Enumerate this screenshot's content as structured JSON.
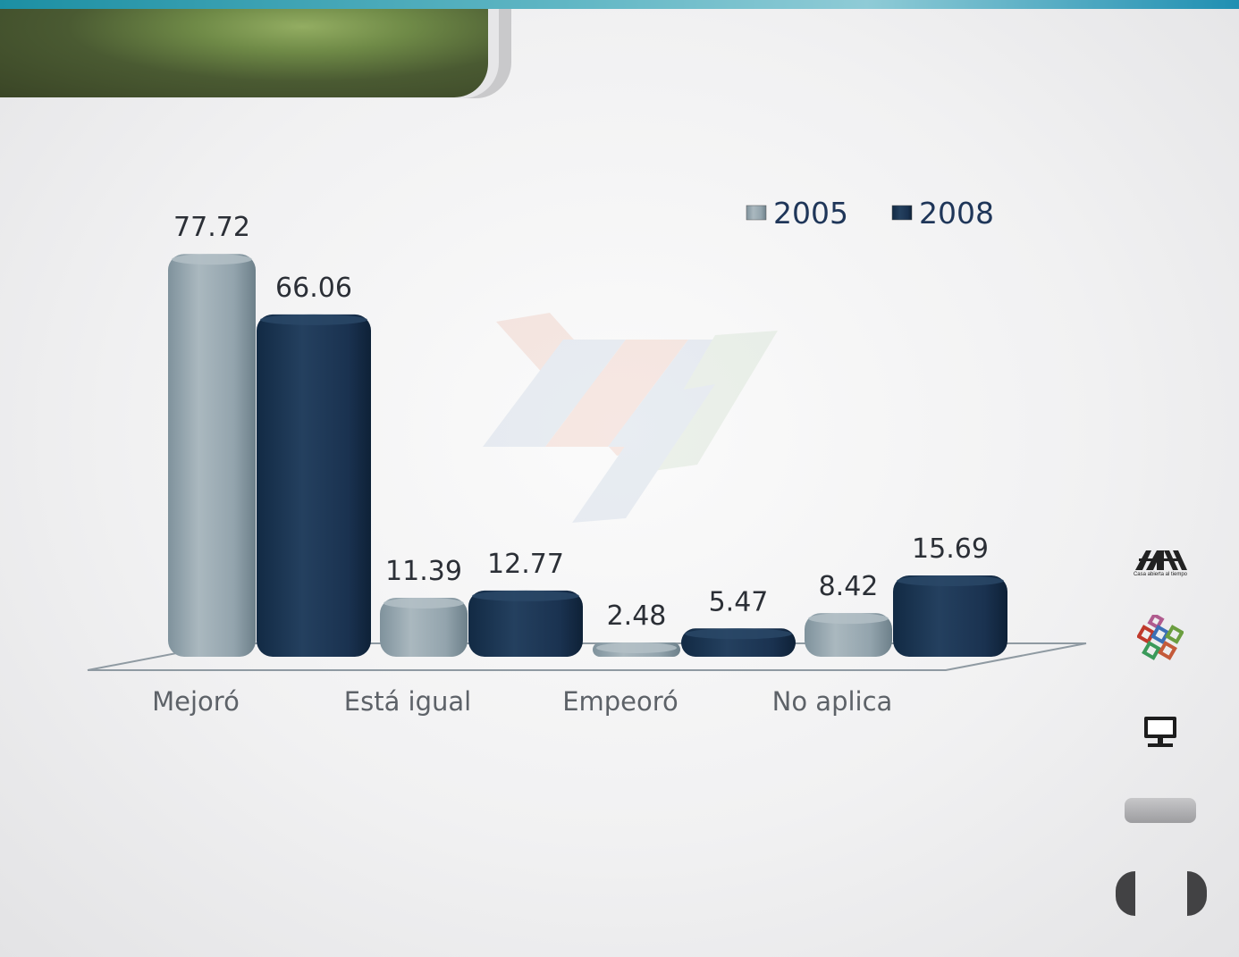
{
  "chart_data": {
    "type": "bar",
    "categories": [
      "Mejoró",
      "Está igual",
      "Empeoró",
      "No aplica"
    ],
    "series": [
      {
        "name": "2005",
        "values": [
          77.72,
          11.39,
          2.48,
          8.42
        ],
        "color": "#8d9ea8"
      },
      {
        "name": "2008",
        "values": [
          66.06,
          12.77,
          5.47,
          15.69
        ],
        "color": "#1c3552"
      }
    ],
    "value_labels": {
      "2005": [
        "77.72",
        "11.39",
        "2.48",
        "8.42"
      ],
      "2008": [
        "66.06",
        "12.77",
        "5.47",
        "15.69"
      ]
    },
    "legend_position": "top-right",
    "grid": false,
    "style": "3d-rounded-bars"
  },
  "sidebar": {
    "logo_tagline": "Casa abierta al tiempo",
    "icons": [
      "uam-logo-icon",
      "cubes-icon",
      "monitor-icon",
      "gray-button",
      "prev-arrow-icon",
      "next-arrow-icon"
    ]
  },
  "colors": {
    "header_tab": "#4a5a32",
    "top_strip": "#1c8fa3"
  }
}
